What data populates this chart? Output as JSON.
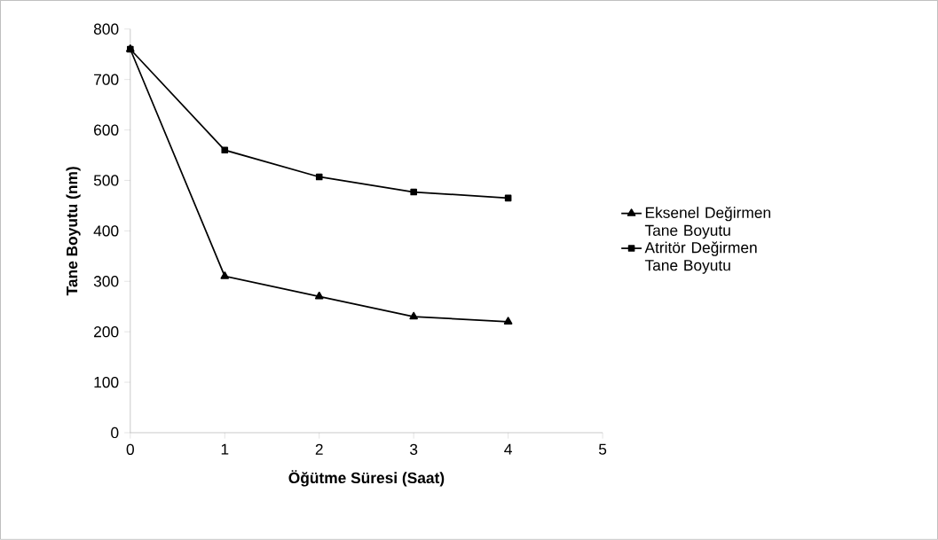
{
  "chart_data": {
    "type": "line",
    "xlabel": "Öğütme Süresi (Saat)",
    "ylabel": "Tane Boyutu (nm)",
    "x": [
      0,
      1,
      2,
      3,
      4
    ],
    "series": [
      {
        "name": "Eksenel Değirmen Tane Boyutu",
        "color": "#000000",
        "marker": "triangle",
        "values": [
          760,
          310,
          270,
          230,
          220
        ]
      },
      {
        "name": "Atritör Değirmen Tane Boyutu",
        "color": "#000000",
        "marker": "square",
        "values": [
          760,
          560,
          507,
          477,
          465
        ]
      }
    ],
    "xlim": [
      0,
      5
    ],
    "xticks": [
      0,
      1,
      2,
      3,
      4,
      5
    ],
    "ylim": [
      0,
      800
    ],
    "yticks": [
      0,
      100,
      200,
      300,
      400,
      500,
      600,
      700,
      800
    ],
    "grid": false,
    "legend": "right",
    "line_style": "solid"
  }
}
